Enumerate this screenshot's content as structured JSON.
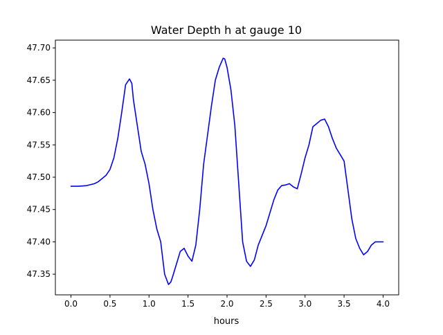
{
  "chart_data": {
    "type": "line",
    "title": "Water Depth h at gauge 10",
    "xlabel": "hours",
    "ylabel": "",
    "xlim": [
      -0.2,
      4.2
    ],
    "ylim": [
      47.318,
      47.712
    ],
    "xticks": [
      0.0,
      0.5,
      1.0,
      1.5,
      2.0,
      2.5,
      3.0,
      3.5,
      4.0
    ],
    "xtick_labels": [
      "0.0",
      "0.5",
      "1.0",
      "1.5",
      "2.0",
      "2.5",
      "3.0",
      "3.5",
      "4.0"
    ],
    "yticks": [
      47.35,
      47.4,
      47.45,
      47.5,
      47.55,
      47.6,
      47.65,
      47.7
    ],
    "ytick_labels": [
      "47.35",
      "47.40",
      "47.45",
      "47.50",
      "47.55",
      "47.60",
      "47.65",
      "47.70"
    ],
    "grid": false,
    "series": [
      {
        "color": "#0000ff",
        "x": [
          0.0,
          0.1,
          0.2,
          0.3,
          0.35,
          0.4,
          0.45,
          0.5,
          0.55,
          0.6,
          0.65,
          0.7,
          0.75,
          0.78,
          0.8,
          0.85,
          0.9,
          0.95,
          1.0,
          1.05,
          1.1,
          1.15,
          1.2,
          1.25,
          1.28,
          1.3,
          1.35,
          1.4,
          1.45,
          1.5,
          1.55,
          1.6,
          1.65,
          1.7,
          1.75,
          1.8,
          1.85,
          1.9,
          1.95,
          1.97,
          2.0,
          2.05,
          2.1,
          2.15,
          2.2,
          2.25,
          2.3,
          2.35,
          2.4,
          2.45,
          2.5,
          2.55,
          2.6,
          2.65,
          2.7,
          2.75,
          2.8,
          2.85,
          2.9,
          2.95,
          3.0,
          3.05,
          3.1,
          3.15,
          3.2,
          3.25,
          3.3,
          3.35,
          3.4,
          3.45,
          3.5,
          3.55,
          3.6,
          3.65,
          3.7,
          3.75,
          3.8,
          3.85,
          3.9,
          3.95,
          4.0
        ],
        "y": [
          47.486,
          47.486,
          47.487,
          47.49,
          47.493,
          47.498,
          47.503,
          47.512,
          47.53,
          47.56,
          47.6,
          47.643,
          47.652,
          47.645,
          47.62,
          47.58,
          47.54,
          47.52,
          47.49,
          47.45,
          47.42,
          47.4,
          47.35,
          47.334,
          47.338,
          47.345,
          47.365,
          47.385,
          47.39,
          47.378,
          47.37,
          47.395,
          47.45,
          47.52,
          47.565,
          47.61,
          47.65,
          47.67,
          47.684,
          47.683,
          47.67,
          47.635,
          47.58,
          47.49,
          47.4,
          47.37,
          47.362,
          47.372,
          47.395,
          47.41,
          47.425,
          47.445,
          47.465,
          47.48,
          47.487,
          47.488,
          47.49,
          47.485,
          47.482,
          47.505,
          47.53,
          47.55,
          47.578,
          47.583,
          47.588,
          47.59,
          47.578,
          47.56,
          47.545,
          47.535,
          47.525,
          47.48,
          47.435,
          47.405,
          47.39,
          47.38,
          47.385,
          47.395,
          47.4,
          47.4,
          47.4
        ]
      }
    ]
  }
}
